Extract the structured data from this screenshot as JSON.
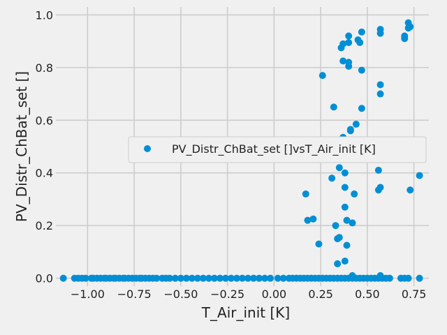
{
  "chart_data": {
    "type": "scatter",
    "title": "",
    "xlabel": "T_Air_init [K]",
    "ylabel": "PV_Distr_ChBat_set []",
    "xlim": [
      -1.17,
      0.83
    ],
    "ylim": [
      -0.03,
      1.03
    ],
    "xticks": [
      -1.0,
      -0.75,
      -0.5,
      -0.25,
      0.0,
      0.25,
      0.5,
      0.75
    ],
    "xtick_labels": [
      "−1.00",
      "−0.75",
      "−0.50",
      "−0.25",
      "0.00",
      "0.25",
      "0.50",
      "0.75"
    ],
    "yticks": [
      0.0,
      0.2,
      0.4,
      0.6,
      0.8,
      1.0
    ],
    "ytick_labels": [
      "0.0",
      "0.2",
      "0.4",
      "0.6",
      "0.8",
      "1.0"
    ],
    "grid": true,
    "legend_position": "center-right",
    "colors": {
      "points": "#008fd5",
      "background": "#f0f0f0",
      "grid": "#cbcbcb"
    },
    "series": [
      {
        "name": "PV_Distr_ChBat_set []vsT_Air_init [K]",
        "marker": "circle",
        "x": [
          -1.13,
          -1.07,
          -1.05,
          -1.03,
          -1.01,
          -0.98,
          -0.97,
          -0.95,
          -0.93,
          -0.91,
          -0.9,
          -0.88,
          -0.86,
          -0.85,
          -0.83,
          -0.81,
          -0.8,
          -0.78,
          -0.76,
          -0.74,
          -0.72,
          -0.71,
          -0.69,
          -0.67,
          -0.65,
          -0.63,
          -0.6,
          -0.58,
          -0.56,
          -0.53,
          -0.5,
          -0.47,
          -0.44,
          -0.41,
          -0.38,
          -0.35,
          -0.32,
          -0.29,
          -0.26,
          -0.23,
          -0.2,
          -0.17,
          -0.14,
          -0.11,
          -0.08,
          -0.05,
          -0.02,
          0.02,
          0.05,
          0.08,
          0.1,
          0.12,
          0.14,
          0.16,
          0.18,
          0.2,
          0.22,
          0.24,
          0.26,
          0.28,
          0.3,
          0.32,
          0.34,
          0.36,
          0.38,
          0.4,
          0.42,
          0.44,
          0.46,
          0.48,
          0.5,
          0.52,
          0.54,
          0.56,
          0.58,
          0.6,
          0.62,
          0.68,
          0.7,
          0.72,
          0.78,
          0.17,
          0.18,
          0.21,
          0.24,
          0.26,
          0.31,
          0.32,
          0.33,
          0.34,
          0.35,
          0.35,
          0.36,
          0.37,
          0.37,
          0.37,
          0.38,
          0.38,
          0.38,
          0.39,
          0.39,
          0.39,
          0.4,
          0.4,
          0.4,
          0.4,
          0.41,
          0.41,
          0.42,
          0.43,
          0.44,
          0.45,
          0.46,
          0.47,
          0.47,
          0.47,
          0.48,
          0.56,
          0.56,
          0.57,
          0.57,
          0.57,
          0.57,
          0.57,
          0.7,
          0.7,
          0.72,
          0.72,
          0.73,
          0.73,
          0.78,
          0.34,
          0.38,
          0.39,
          0.42,
          0.57
        ],
        "y": [
          0,
          0,
          0,
          0,
          0,
          0,
          0,
          0,
          0,
          0,
          0,
          0,
          0,
          0,
          0,
          0,
          0,
          0,
          0,
          0,
          0,
          0,
          0,
          0,
          0,
          0,
          0,
          0,
          0,
          0,
          0,
          0,
          0,
          0,
          0,
          0,
          0,
          0,
          0,
          0,
          0,
          0,
          0,
          0,
          0,
          0,
          0,
          0,
          0,
          0,
          0,
          0,
          0,
          0,
          0,
          0,
          0,
          0,
          0,
          0,
          0,
          0,
          0,
          0,
          0,
          0,
          0,
          0,
          0,
          0,
          0,
          0,
          0,
          0,
          0,
          0,
          0,
          0,
          0,
          0,
          0,
          0.32,
          0.22,
          0.225,
          0.13,
          0.77,
          0.38,
          0.65,
          0.2,
          0.15,
          0.155,
          0.42,
          0.875,
          0.89,
          0.535,
          0.825,
          0.345,
          0.4,
          0.27,
          0.22,
          0.46,
          0.47,
          0.895,
          0.92,
          0.82,
          0.805,
          0.565,
          0.56,
          0.21,
          0.32,
          0.585,
          0.905,
          0.895,
          0.935,
          0.79,
          0.645,
          0.5,
          0.41,
          0.335,
          0.945,
          0.93,
          0.735,
          0.7,
          0.345,
          0.91,
          0.92,
          0.97,
          0.95,
          0.335,
          0.955,
          0.39,
          0.055,
          0.065,
          0.125,
          0.01,
          0.01
        ]
      }
    ]
  }
}
